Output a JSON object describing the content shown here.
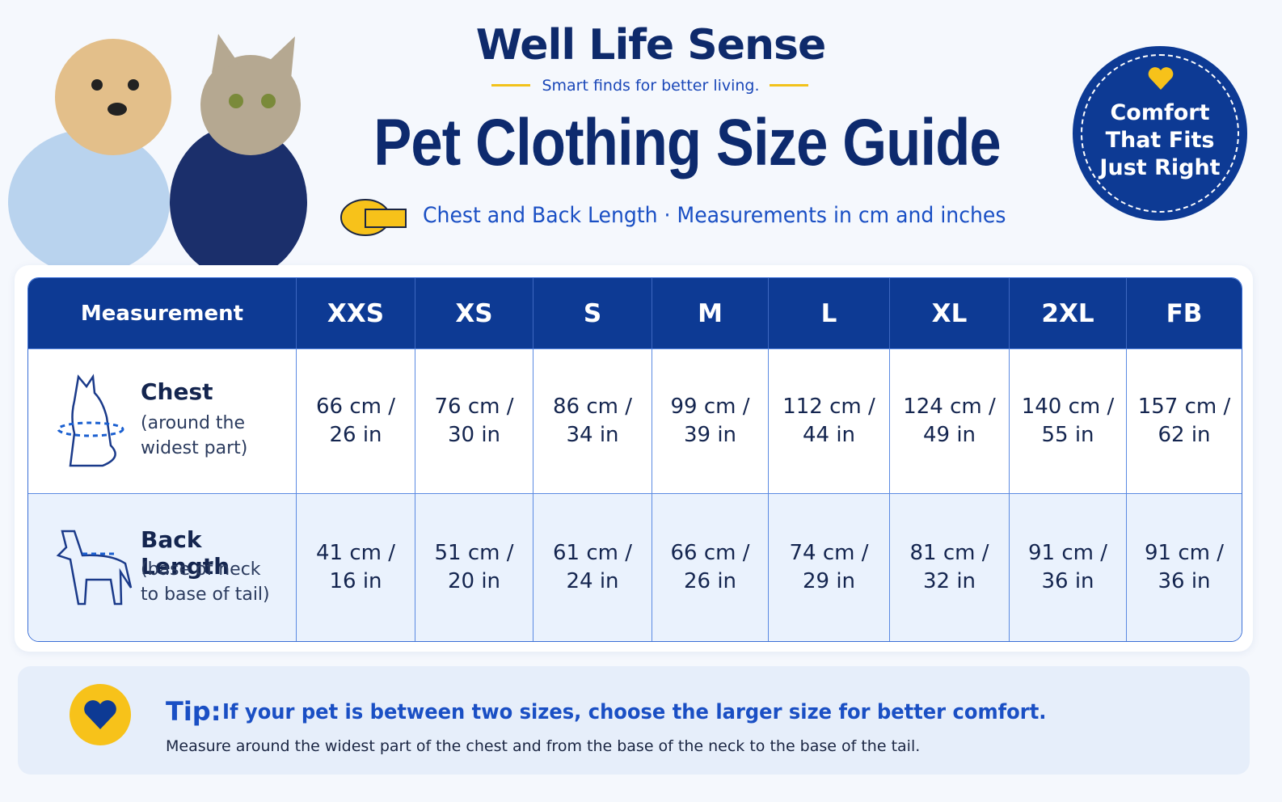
{
  "header": {
    "brand": "Well Life Sense",
    "tagline": "Smart finds for better living.",
    "title": "Pet Clothing Size Guide",
    "subtitle": "Chest and Back Length · Measurements in cm and inches"
  },
  "badge": {
    "lines": [
      "Comfort",
      "That Fits",
      "Just Right"
    ]
  },
  "table": {
    "header": [
      "Measurement",
      "XXS",
      "XS",
      "S",
      "M",
      "L",
      "XL",
      "2XL",
      "FB"
    ],
    "rows": [
      {
        "name": "Chest",
        "note": "(around the widest part)",
        "cells": [
          "66 cm / 26 in",
          "76 cm / 30 in",
          "86 cm / 34 in",
          "99 cm / 39 in",
          "112 cm / 44 in",
          "124 cm / 49 in",
          "140 cm / 55 in",
          "157 cm / 62 in"
        ]
      },
      {
        "name": "Back Length",
        "note": "(base of neck to base of tail)",
        "cells": [
          "41 cm / 16 in",
          "51 cm / 20 in",
          "61 cm / 24 in",
          "66 cm / 26 in",
          "74 cm / 29 in",
          "81 cm / 32 in",
          "91 cm / 36 in",
          "91 cm / 36 in"
        ]
      }
    ]
  },
  "tip": {
    "label": "Tip:",
    "text": "If your pet is between two sizes, choose the larger size for better comfort.",
    "note": "Measure around the widest part of the chest and from the base of the neck to the base of the tail."
  }
}
